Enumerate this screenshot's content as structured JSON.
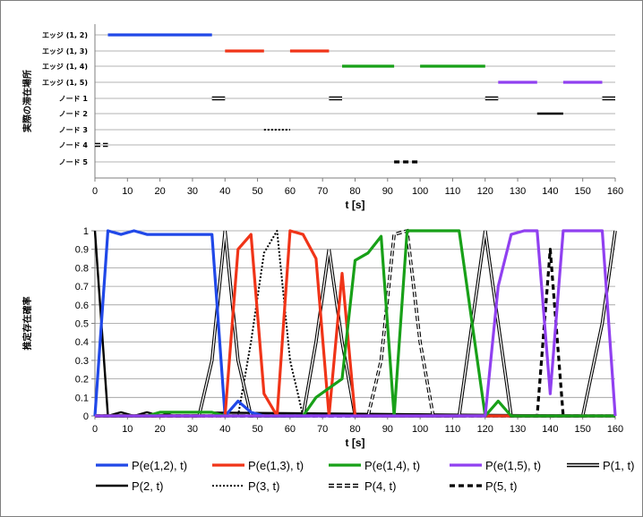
{
  "chart_data": [
    {
      "type": "timeline",
      "ylabel": "実際の滞在場所",
      "xlabel": "t [s]",
      "xlim": [
        0,
        160
      ],
      "xticks": [
        0,
        10,
        20,
        30,
        40,
        50,
        60,
        70,
        80,
        90,
        100,
        110,
        120,
        130,
        140,
        150,
        160
      ],
      "categories": [
        "エッジ (1, 2)",
        "エッジ (1, 3)",
        "エッジ (1, 4)",
        "エッジ (1, 5)",
        "ノード 1",
        "ノード 2",
        "ノード 3",
        "ノード 4",
        "ノード 5"
      ],
      "intervals": [
        {
          "category": 0,
          "style": "e12",
          "start": 4,
          "end": 36
        },
        {
          "category": 1,
          "style": "e13",
          "start": 40,
          "end": 52
        },
        {
          "category": 1,
          "style": "e13",
          "start": 60,
          "end": 72
        },
        {
          "category": 2,
          "style": "e14",
          "start": 76,
          "end": 92
        },
        {
          "category": 2,
          "style": "e14",
          "start": 100,
          "end": 120
        },
        {
          "category": 3,
          "style": "e15",
          "start": 124,
          "end": 136
        },
        {
          "category": 3,
          "style": "e15",
          "start": 144,
          "end": 156
        },
        {
          "category": 4,
          "style": "n1",
          "start": 36,
          "end": 40
        },
        {
          "category": 4,
          "style": "n1",
          "start": 72,
          "end": 76
        },
        {
          "category": 4,
          "style": "n1",
          "start": 120,
          "end": 124
        },
        {
          "category": 4,
          "style": "n1",
          "start": 156,
          "end": 160
        },
        {
          "category": 5,
          "style": "n2",
          "start": 136,
          "end": 144
        },
        {
          "category": 6,
          "style": "n3",
          "start": 52,
          "end": 60
        },
        {
          "category": 7,
          "style": "n4",
          "start": 0,
          "end": 4
        },
        {
          "category": 8,
          "style": "n5",
          "start": 92,
          "end": 100
        }
      ]
    },
    {
      "type": "line",
      "ylabel": "推定存在確率",
      "xlabel": "t [s]",
      "xlim": [
        0,
        160
      ],
      "ylim": [
        0,
        1
      ],
      "xticks": [
        0,
        10,
        20,
        30,
        40,
        50,
        60,
        70,
        80,
        90,
        100,
        110,
        120,
        130,
        140,
        150,
        160
      ],
      "yticks": [
        0,
        0.1,
        0.2,
        0.3,
        0.4,
        0.5,
        0.6,
        0.7,
        0.8,
        0.9,
        1
      ],
      "series": [
        {
          "name": "P(e(1,2), t)",
          "style": "e12",
          "x": [
            0,
            4,
            8,
            12,
            16,
            20,
            24,
            28,
            32,
            36,
            40,
            44,
            48,
            52,
            160
          ],
          "y": [
            0,
            1,
            0.98,
            1,
            0.98,
            0.98,
            0.98,
            0.98,
            0.98,
            0.98,
            0,
            0.08,
            0.02,
            0,
            0
          ]
        },
        {
          "name": "P(e(1,3), t)",
          "style": "e13",
          "x": [
            0,
            36,
            40,
            44,
            48,
            52,
            56,
            60,
            64,
            68,
            72,
            76,
            80,
            84,
            160
          ],
          "y": [
            0,
            0,
            0,
            0.9,
            0.98,
            0.12,
            0,
            1,
            0.98,
            0.85,
            0,
            0.77,
            0,
            0,
            0
          ]
        },
        {
          "name": "P(e(1,4), t)",
          "style": "e14",
          "x": [
            0,
            16,
            20,
            24,
            28,
            32,
            36,
            40,
            64,
            68,
            72,
            76,
            80,
            84,
            88,
            92,
            96,
            100,
            104,
            108,
            112,
            116,
            120,
            124,
            128,
            160
          ],
          "y": [
            0,
            0,
            0.02,
            0.02,
            0.02,
            0.02,
            0.02,
            0,
            0,
            0.1,
            0.15,
            0.2,
            0.84,
            0.88,
            0.97,
            0,
            1,
            1,
            1,
            1,
            1,
            0.5,
            0,
            0.08,
            0,
            0
          ]
        },
        {
          "name": "P(e(1,5), t)",
          "style": "e15",
          "x": [
            0,
            116,
            120,
            124,
            128,
            132,
            136,
            140,
            144,
            148,
            152,
            156,
            160
          ],
          "y": [
            0,
            0,
            0,
            0.7,
            0.98,
            1,
            1,
            0.12,
            1,
            1,
            1,
            1,
            0
          ]
        },
        {
          "name": "P(1, t)",
          "style": "n1",
          "x": [
            0,
            32,
            36,
            40,
            44,
            48,
            64,
            68,
            72,
            76,
            80,
            112,
            116,
            120,
            124,
            128,
            150,
            156,
            160
          ],
          "y": [
            0,
            0,
            0.3,
            1,
            0.3,
            0,
            0,
            0.4,
            0.9,
            0.4,
            0,
            0,
            0.5,
            1,
            0.5,
            0,
            0,
            0.5,
            1
          ]
        },
        {
          "name": "P(2, t)",
          "style": "n2",
          "x": [
            0,
            4,
            8,
            12,
            16,
            20,
            24,
            160
          ],
          "y": [
            1,
            0,
            0.02,
            0,
            0.02,
            0,
            0.02,
            0
          ]
        },
        {
          "name": "P(3, t)",
          "style": "n3",
          "x": [
            0,
            44,
            48,
            52,
            56,
            60,
            64,
            160
          ],
          "y": [
            0,
            0,
            0.4,
            0.88,
            1,
            0.3,
            0,
            0
          ]
        },
        {
          "name": "P(4, t)",
          "style": "n4",
          "x": [
            0,
            84,
            88,
            92,
            96,
            100,
            104,
            160
          ],
          "y": [
            0,
            0,
            0.3,
            0.98,
            1,
            0.4,
            0,
            0
          ]
        },
        {
          "name": "P(5, t)",
          "style": "n5",
          "x": [
            0,
            132,
            136,
            140,
            144,
            148,
            160
          ],
          "y": [
            0,
            0,
            0,
            0.9,
            0,
            0,
            0
          ]
        }
      ],
      "legend_position": "bottom"
    }
  ],
  "colors": {
    "e12": "#2048e8",
    "e13": "#f03418",
    "e14": "#18a018",
    "e15": "#9040f0",
    "black": "#000000"
  }
}
